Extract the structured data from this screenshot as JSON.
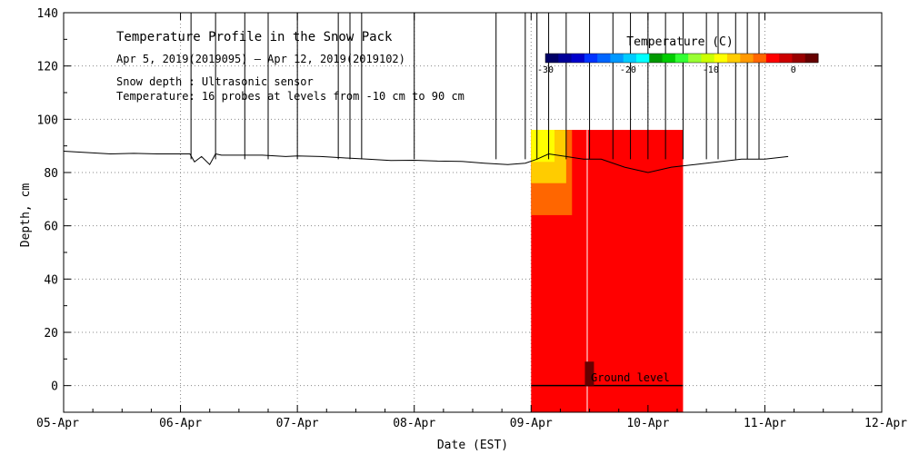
{
  "chart_data": {
    "type": "heatmap",
    "title": "Temperature Profile in the Snow Pack",
    "subtitle": "Apr  5, 2019(2019095) — Apr 12, 2019(2019102)",
    "notes": [
      "Snow depth : Ultrasonic sensor",
      "Temperature: 16 probes at levels from -10 cm to 90 cm"
    ],
    "xlabel": "Date (EST)",
    "ylabel": "Depth, cm",
    "ylim": [
      -10,
      140
    ],
    "yticks": [
      0,
      20,
      40,
      60,
      80,
      100,
      120,
      140
    ],
    "xlim_days": [
      0,
      7
    ],
    "x_tick_labels": [
      "05-Apr",
      "06-Apr",
      "07-Apr",
      "08-Apr",
      "09-Apr",
      "10-Apr",
      "11-Apr",
      "12-Apr"
    ],
    "grid": true,
    "ground_level_label": "Ground level",
    "ground_level_value": 0,
    "colorbar": {
      "label": "Temperature (C)",
      "tick_labels": [
        "-30",
        "-20",
        "-10",
        "0"
      ],
      "tick_values": [
        -30,
        -20,
        -10,
        0
      ],
      "range": [
        -30,
        3
      ],
      "colors": [
        "#000066",
        "#000099",
        "#0000cc",
        "#0033ff",
        "#0066ff",
        "#0099ff",
        "#00ccff",
        "#00ffff",
        "#009900",
        "#00cc00",
        "#33ff33",
        "#99ff33",
        "#ccff00",
        "#ffff00",
        "#ffcc00",
        "#ff9900",
        "#ff6600",
        "#ff0000",
        "#cc0000",
        "#990000",
        "#660000"
      ]
    },
    "snow_depth_series": {
      "name": "Snow depth",
      "x_days": [
        0.0,
        0.2,
        0.4,
        0.6,
        0.8,
        1.0,
        1.08,
        1.12,
        1.18,
        1.25,
        1.3,
        1.35,
        1.4,
        1.5,
        1.7,
        1.9,
        2.0,
        2.2,
        2.4,
        2.6,
        2.8,
        3.0,
        3.2,
        3.4,
        3.6,
        3.8,
        3.95,
        4.05,
        4.15,
        4.3,
        4.45,
        4.6,
        4.8,
        5.0,
        5.2,
        5.4,
        5.8,
        6.0,
        6.2
      ],
      "depth_cm": [
        88,
        87.5,
        87,
        87.2,
        87,
        87,
        87,
        84,
        86,
        83,
        87,
        86.5,
        86.5,
        86.5,
        86.5,
        86,
        86.2,
        86,
        85.5,
        85,
        84.5,
        84.6,
        84.3,
        84.2,
        83.5,
        83,
        83.5,
        85,
        87,
        86,
        85,
        85,
        82,
        80,
        82,
        83,
        85,
        85,
        86
      ]
    },
    "temperature_regions": [
      {
        "x_from_days": 4.0,
        "x_to_days": 5.3,
        "depth_from_cm": -10,
        "depth_to_cm": 96,
        "temperature_c": 0,
        "color": "#ff0000"
      },
      {
        "x_from_days": 4.0,
        "x_to_days": 4.35,
        "depth_from_cm": 64,
        "depth_to_cm": 96,
        "temperature_c": -1,
        "color": "#ff6600"
      },
      {
        "x_from_days": 4.0,
        "x_to_days": 4.3,
        "depth_from_cm": 76,
        "depth_to_cm": 96,
        "temperature_c": -3,
        "color": "#ffcc00"
      },
      {
        "x_from_days": 4.0,
        "x_to_days": 4.2,
        "depth_from_cm": 84,
        "depth_to_cm": 96,
        "temperature_c": -5,
        "color": "#ffff00"
      }
    ]
  }
}
